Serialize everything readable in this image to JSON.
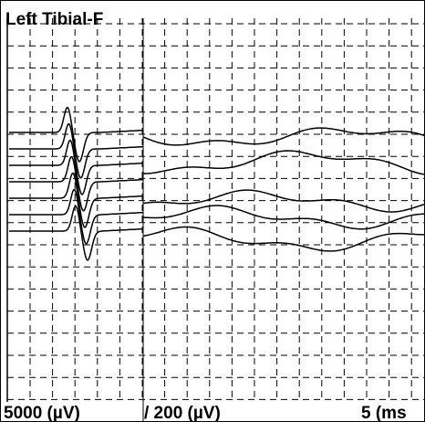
{
  "panel": {
    "title": "Left Tibial-F"
  },
  "footer": {
    "left_scale": "5000  (µV)",
    "right_scale": "/ 200  (µV)",
    "time_scale": "5  (ms"
  }
}
